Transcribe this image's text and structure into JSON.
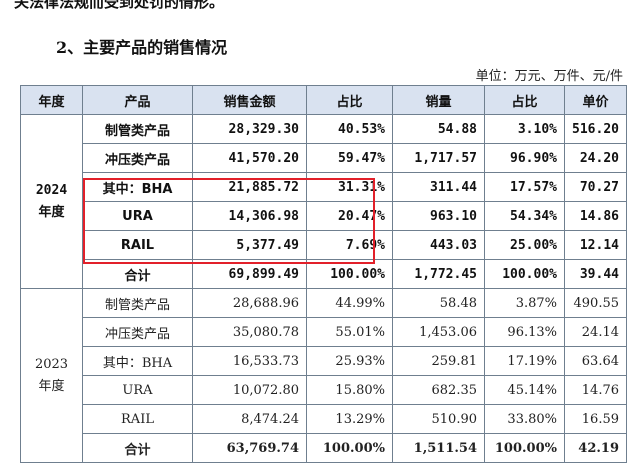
{
  "top_cut_text": "关法律法规而受到处罚的情形。",
  "section_title": "2、主要产品的销售情况",
  "unit_note": "单位：万元、万件、元/件",
  "headers": [
    "年度",
    "产品",
    "销售金额",
    "占比",
    "销量",
    "占比",
    "单价"
  ],
  "year_2024": {
    "line1": "2024",
    "line2": "年度"
  },
  "year_2023": {
    "line1": "2023",
    "line2": "年度"
  },
  "rows_2024": [
    [
      "制管类产品",
      "28,329.30",
      "40.53%",
      "54.88",
      "3.10%",
      "516.20"
    ],
    [
      "冲压类产品",
      "41,570.20",
      "59.47%",
      "1,717.57",
      "96.90%",
      "24.20"
    ],
    [
      "其中：BHA",
      "21,885.72",
      "31.31%",
      "311.44",
      "17.57%",
      "70.27"
    ],
    [
      "URA",
      "14,306.98",
      "20.47%",
      "963.10",
      "54.34%",
      "14.86"
    ],
    [
      "RAIL",
      "5,377.49",
      "7.69%",
      "443.03",
      "25.00%",
      "12.14"
    ],
    [
      "合计",
      "69,899.49",
      "100.00%",
      "1,772.45",
      "100.00%",
      "39.44"
    ]
  ],
  "rows_2023": [
    [
      "制管类产品",
      "28,688.96",
      "44.99%",
      "58.48",
      "3.87%",
      "490.55"
    ],
    [
      "冲压类产品",
      "35,080.78",
      "55.01%",
      "1,453.06",
      "96.13%",
      "24.14"
    ],
    [
      "其中：BHA",
      "16,533.73",
      "25.93%",
      "259.81",
      "17.19%",
      "63.64"
    ],
    [
      "URA",
      "10,072.80",
      "15.80%",
      "682.35",
      "45.14%",
      "14.76"
    ],
    [
      "RAIL",
      "8,474.24",
      "13.29%",
      "510.90",
      "33.80%",
      "16.59"
    ],
    [
      "合计",
      "63,769.74",
      "100.00%",
      "1,511.54",
      "100.00%",
      "42.19"
    ]
  ],
  "colors": {
    "header_bg": "#d9e2f0",
    "border": "#6f7f8f",
    "highlight": "#e2202a"
  }
}
